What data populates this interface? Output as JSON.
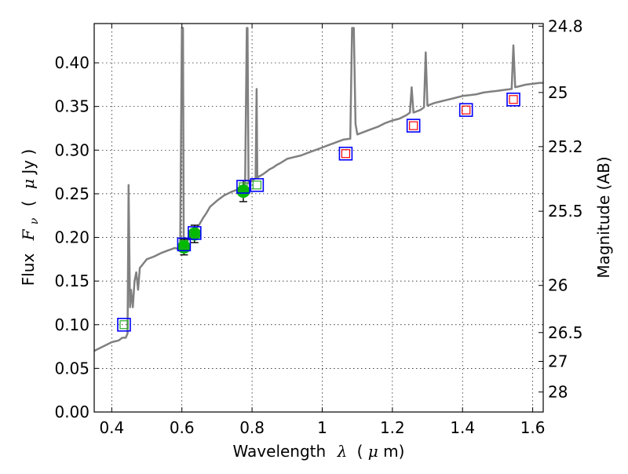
{
  "chart_data": {
    "type": "line",
    "xlabel_prefix": "Wavelength",
    "xlabel_symbol": "λ",
    "xlabel_unit_open": "(",
    "xlabel_unit_mu": "μ",
    "xlabel_unit_rest": "m)",
    "ylabel_prefix": "Flux",
    "ylabel_symbol": "F",
    "ylabel_subscript": "ν",
    "ylabel_unit_open": "(",
    "ylabel_unit_mu": "μ",
    "ylabel_unit_rest": "Jy )",
    "right_ylabel": "Magnitude (AB)",
    "xlim": [
      0.35,
      1.63
    ],
    "ylim": [
      0,
      0.445
    ],
    "xticks": [
      0.4,
      0.6,
      0.8,
      1.0,
      1.2,
      1.4,
      1.6
    ],
    "xtick_labels": [
      "0.4",
      "0.6",
      "0.8",
      "1",
      "1.2",
      "1.4",
      "1.6"
    ],
    "yticks": [
      0.0,
      0.05,
      0.1,
      0.15,
      0.2,
      0.25,
      0.3,
      0.35,
      0.4
    ],
    "ytick_labels": [
      "0.00",
      "0.05",
      "0.10",
      "0.15",
      "0.20",
      "0.25",
      "0.30",
      "0.35",
      "0.40"
    ],
    "right_ticks": [
      {
        "label": "24.8",
        "flux": 0.442
      },
      {
        "label": "25",
        "flux": 0.366
      },
      {
        "label": "25.2",
        "flux": 0.304
      },
      {
        "label": "25.5",
        "flux": 0.23
      },
      {
        "label": "26",
        "flux": 0.145
      },
      {
        "label": "26.5",
        "flux": 0.091
      },
      {
        "label": "27",
        "flux": 0.058
      },
      {
        "label": "28",
        "flux": 0.023
      }
    ],
    "grid": true,
    "series": [
      {
        "kind": "model-sed-line",
        "color": "#808080",
        "x": [
          0.35,
          0.38,
          0.4,
          0.42,
          0.43,
          0.44,
          0.445,
          0.448,
          0.452,
          0.455,
          0.46,
          0.465,
          0.47,
          0.475,
          0.48,
          0.49,
          0.5,
          0.52,
          0.54,
          0.56,
          0.58,
          0.595,
          0.6,
          0.601,
          0.602,
          0.603,
          0.605,
          0.61,
          0.62,
          0.63,
          0.64,
          0.65,
          0.66,
          0.67,
          0.68,
          0.7,
          0.72,
          0.74,
          0.76,
          0.78,
          0.785,
          0.787,
          0.79,
          0.8,
          0.81,
          0.813,
          0.815,
          0.82,
          0.83,
          0.84,
          0.85,
          0.86,
          0.87,
          0.88,
          0.9,
          0.92,
          0.94,
          0.96,
          0.98,
          1.0,
          1.02,
          1.04,
          1.06,
          1.08,
          1.085,
          1.09,
          1.095,
          1.1,
          1.12,
          1.14,
          1.16,
          1.18,
          1.2,
          1.22,
          1.24,
          1.25,
          1.255,
          1.26,
          1.28,
          1.29,
          1.295,
          1.3,
          1.32,
          1.34,
          1.36,
          1.38,
          1.4,
          1.42,
          1.44,
          1.46,
          1.48,
          1.5,
          1.52,
          1.54,
          1.545,
          1.55,
          1.56,
          1.58,
          1.6,
          1.62,
          1.63
        ],
        "y": [
          0.07,
          0.076,
          0.08,
          0.082,
          0.085,
          0.085,
          0.09,
          0.26,
          0.12,
          0.14,
          0.12,
          0.15,
          0.16,
          0.14,
          0.165,
          0.17,
          0.175,
          0.178,
          0.182,
          0.185,
          0.188,
          0.186,
          0.44,
          0.44,
          0.44,
          0.44,
          0.2,
          0.195,
          0.198,
          0.205,
          0.21,
          0.215,
          0.222,
          0.228,
          0.235,
          0.242,
          0.248,
          0.252,
          0.255,
          0.258,
          0.44,
          0.44,
          0.262,
          0.265,
          0.268,
          0.37,
          0.268,
          0.27,
          0.272,
          0.275,
          0.278,
          0.28,
          0.283,
          0.285,
          0.29,
          0.292,
          0.294,
          0.297,
          0.3,
          0.303,
          0.306,
          0.309,
          0.312,
          0.313,
          0.44,
          0.44,
          0.33,
          0.318,
          0.321,
          0.324,
          0.327,
          0.331,
          0.334,
          0.336,
          0.34,
          0.343,
          0.372,
          0.343,
          0.346,
          0.349,
          0.412,
          0.351,
          0.354,
          0.356,
          0.358,
          0.36,
          0.362,
          0.363,
          0.364,
          0.366,
          0.367,
          0.368,
          0.369,
          0.37,
          0.42,
          0.372,
          0.373,
          0.375,
          0.376,
          0.377,
          0.377
        ]
      },
      {
        "kind": "observed-points",
        "color": "#00bb00",
        "x": [
          0.606,
          0.636,
          0.775
        ],
        "y": [
          0.189,
          0.204,
          0.253
        ],
        "yerr": [
          0.009,
          0.01,
          0.012
        ]
      },
      {
        "kind": "model-photometry-boxes",
        "box_color": "#0000ff",
        "inner_colors": [
          "#22aa22",
          "#22aa22",
          "#22aa22",
          "#22aa22",
          "#22aa22",
          "#ff0000",
          "#ff0000",
          "#ff0000",
          "#ff0000"
        ],
        "x": [
          0.435,
          0.606,
          0.636,
          0.775,
          0.814,
          1.067,
          1.26,
          1.41,
          1.545
        ],
        "y": [
          0.1,
          0.192,
          0.205,
          0.258,
          0.26,
          0.296,
          0.328,
          0.346,
          0.358
        ]
      }
    ]
  }
}
